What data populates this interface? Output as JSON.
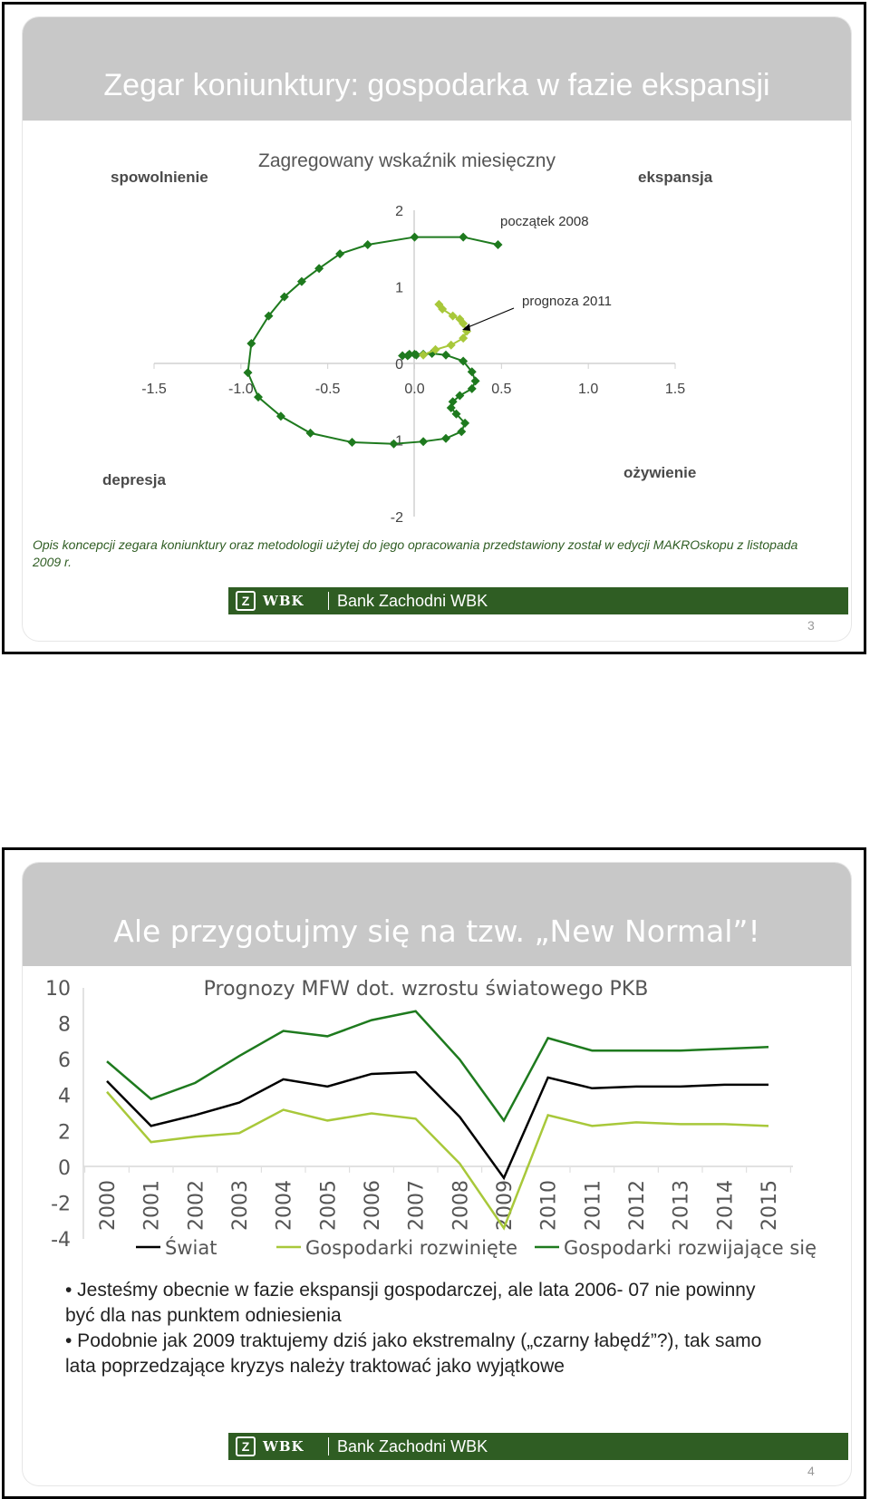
{
  "slide1": {
    "title": "Zegar koniunktury: gospodarka w fazie ekspansji",
    "chart_title": "Zagregowany wskaźnik miesięczny",
    "quadrants": {
      "top_left": "spowolnienie",
      "top_right": "ekspansja",
      "bottom_left": "depresja",
      "bottom_right": "ożywienie"
    },
    "annotations": {
      "start": "początek 2008",
      "forecast": "prognoza 2011"
    },
    "note": "Opis koncepcji zegara koniunktury oraz metodologii użytej do jego opracowania przedstawiony został w edycji MAKROskopu z listopada 2009 r.",
    "footer": {
      "logo": "Z",
      "wbk": "WBK",
      "name": "Bank Zachodni WBK"
    },
    "page": "3"
  },
  "slide2": {
    "title": "Ale przygotujmy się na tzw. „New Normal”!",
    "bullets": [
      "• Jesteśmy obecnie w fazie ekspansji gospodarczej, ale lata 2006- 07 nie powinny być dla nas punktem odniesienia",
      "• Podobnie jak 2009 traktujemy dziś jako ekstremalny („czarny łabędź”?), tak samo lata poprzedzające kryzys należy traktować jako wyjątkowe"
    ],
    "footer": {
      "logo": "Z",
      "wbk": "WBK",
      "name": "Bank Zachodni WBK"
    },
    "page": "4"
  },
  "chart_data": [
    {
      "type": "scatter",
      "title": "Zagregowany wskaźnik miesięczny",
      "xlim": [
        -1.5,
        1.5
      ],
      "ylim": [
        -2,
        2
      ],
      "x_ticks": [
        "-1.5",
        "-1.0",
        "-0.5",
        "0.0",
        "0.5",
        "1.0",
        "1.5"
      ],
      "y_ticks": [
        "2",
        "1",
        "0",
        "-1",
        "-2"
      ],
      "series": [
        {
          "color": "#1e7a1e",
          "points": [
            [
              0.48,
              1.55
            ],
            [
              0.28,
              1.65
            ],
            [
              0,
              1.65
            ],
            [
              -0.27,
              1.55
            ],
            [
              -0.43,
              1.43
            ],
            [
              -0.55,
              1.24
            ],
            [
              -0.65,
              1.07
            ],
            [
              -0.75,
              0.87
            ],
            [
              -0.84,
              0.62
            ],
            [
              -0.94,
              0.26
            ],
            [
              -0.96,
              -0.12
            ],
            [
              -0.9,
              -0.44
            ],
            [
              -0.77,
              -0.69
            ],
            [
              -0.6,
              -0.91
            ],
            [
              -0.36,
              -1.03
            ],
            [
              -0.12,
              -1.05
            ],
            [
              0.05,
              -1.02
            ],
            [
              0.18,
              -0.98
            ],
            [
              0.27,
              -0.89
            ],
            [
              0.29,
              -0.78
            ],
            [
              0.24,
              -0.66
            ],
            [
              0.21,
              -0.58
            ],
            [
              0.22,
              -0.5
            ],
            [
              0.26,
              -0.42
            ],
            [
              0.33,
              -0.33
            ],
            [
              0.35,
              -0.23
            ],
            [
              0.33,
              -0.11
            ],
            [
              0.28,
              0.03
            ],
            [
              0.18,
              0.11
            ],
            [
              0.1,
              0.13
            ],
            [
              0.05,
              0.12
            ],
            [
              0,
              0.12
            ],
            [
              -0.03,
              0.12
            ],
            [
              -0.07,
              0.1
            ],
            [
              -0.04,
              0.1
            ],
            [
              0.01,
              0.11
            ]
          ]
        },
        {
          "color": "#a8c83a",
          "points": [
            [
              0.05,
              0.11
            ],
            [
              0.12,
              0.18
            ],
            [
              0.21,
              0.24
            ],
            [
              0.28,
              0.33
            ],
            [
              0.3,
              0.42
            ],
            [
              0.28,
              0.52
            ],
            [
              0.26,
              0.58
            ],
            [
              0.22,
              0.62
            ],
            [
              0.16,
              0.71
            ],
            [
              0.14,
              0.77
            ]
          ]
        }
      ]
    },
    {
      "type": "line",
      "title": "Prognozy MFW dot. wzrostu światowego PKB",
      "x": [
        "2000",
        "2001",
        "2002",
        "2003",
        "2004",
        "2005",
        "2006",
        "2007",
        "2008",
        "2009",
        "2010",
        "2011",
        "2012",
        "2013",
        "2014",
        "2015"
      ],
      "ylim": [
        -4,
        10
      ],
      "y_ticks": [
        "10",
        "8",
        "6",
        "4",
        "2",
        "0",
        "-2",
        "-4"
      ],
      "legend_position": "bottom",
      "series": [
        {
          "name": "Świat",
          "color": "#000000",
          "values": [
            4.8,
            2.3,
            2.9,
            3.6,
            4.9,
            4.5,
            5.2,
            5.3,
            2.8,
            -0.6,
            5.0,
            4.4,
            4.5,
            4.5,
            4.6,
            4.6
          ]
        },
        {
          "name": "Gospodarki rozwinięte",
          "color": "#a8c83a",
          "values": [
            4.2,
            1.4,
            1.7,
            1.9,
            3.2,
            2.6,
            3.0,
            2.7,
            0.2,
            -3.4,
            2.9,
            2.3,
            2.5,
            2.4,
            2.4,
            2.3
          ]
        },
        {
          "name": "Gospodarki rozwijające się",
          "color": "#1e7a1e",
          "values": [
            5.9,
            3.8,
            4.7,
            6.2,
            7.6,
            7.3,
            8.2,
            8.7,
            6.0,
            2.6,
            7.2,
            6.5,
            6.5,
            6.5,
            6.6,
            6.7
          ]
        }
      ]
    }
  ]
}
